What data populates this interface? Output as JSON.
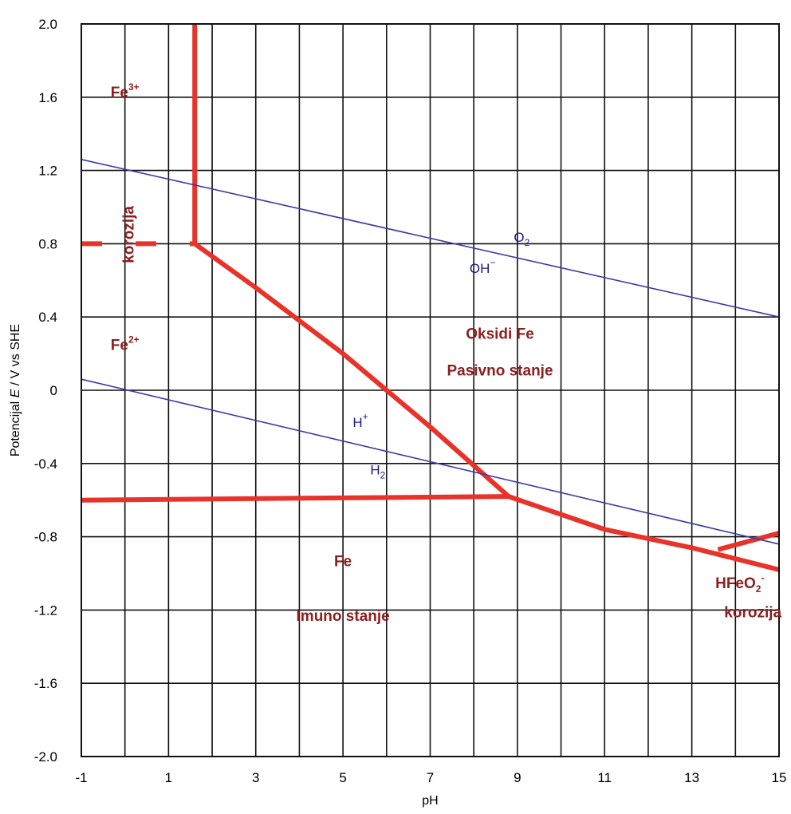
{
  "chart_data": {
    "type": "line",
    "xlabel": "pH",
    "ylabel_parts": [
      "Potencijal ",
      "E",
      " / V vs SHE"
    ],
    "xlim": [
      -1,
      15
    ],
    "ylim": [
      -2.0,
      2.0
    ],
    "x_grid_step": 1,
    "y_grid_step": 0.4,
    "x_ticks": [
      {
        "value": -1,
        "label": "-1"
      },
      {
        "value": 1,
        "label": "1"
      },
      {
        "value": 3,
        "label": "3"
      },
      {
        "value": 5,
        "label": "5"
      },
      {
        "value": 7,
        "label": "7"
      },
      {
        "value": 9,
        "label": "9"
      },
      {
        "value": 11,
        "label": "11"
      },
      {
        "value": 13,
        "label": "13"
      },
      {
        "value": 15,
        "label": "15"
      }
    ],
    "y_ticks": [
      {
        "value": 2.0,
        "label": "2.0"
      },
      {
        "value": 1.6,
        "label": "1.6"
      },
      {
        "value": 1.2,
        "label": "1.2"
      },
      {
        "value": 0.8,
        "label": "0.8"
      },
      {
        "value": 0.4,
        "label": "0.4"
      },
      {
        "value": 0.0,
        "label": "0"
      },
      {
        "value": -0.4,
        "label": "-0.4"
      },
      {
        "value": -0.8,
        "label": "-0.8"
      },
      {
        "value": -1.2,
        "label": "-1.2"
      },
      {
        "value": -1.6,
        "label": "-1.6"
      },
      {
        "value": -2.0,
        "label": "-2.0"
      }
    ],
    "grid": true,
    "series": [
      {
        "color": "#e8332a",
        "style": "solid",
        "points": [
          [
            1.6,
            2.0
          ],
          [
            1.6,
            0.8
          ]
        ]
      },
      {
        "color": "#e8332a",
        "style": "solid",
        "points": [
          [
            1.6,
            0.8
          ],
          [
            3.0,
            0.56
          ],
          [
            5.0,
            0.2
          ],
          [
            7.0,
            -0.2
          ],
          [
            8.8,
            -0.58
          ]
        ]
      },
      {
        "color": "#e8332a",
        "style": "solid",
        "points": [
          [
            -1.0,
            -0.6
          ],
          [
            8.8,
            -0.58
          ]
        ]
      },
      {
        "color": "#e8332a",
        "style": "solid",
        "points": [
          [
            8.8,
            -0.58
          ],
          [
            11.0,
            -0.76
          ],
          [
            13.0,
            -0.86
          ],
          [
            15.0,
            -0.98
          ]
        ]
      },
      {
        "color": "#e8332a",
        "style": "solid",
        "points": [
          [
            13.6,
            -0.87
          ],
          [
            15.0,
            -0.78
          ]
        ]
      },
      {
        "color": "#e8332a",
        "style": "dashed",
        "points": [
          [
            -1.0,
            0.8
          ],
          [
            1.6,
            0.8
          ]
        ]
      },
      {
        "color": "#3a3aa8",
        "style": "solid",
        "points": [
          [
            -1.0,
            1.26
          ],
          [
            15.0,
            0.4
          ]
        ]
      },
      {
        "color": "#3a3aa8",
        "style": "solid",
        "points": [
          [
            -1.0,
            0.06
          ],
          [
            15.0,
            -0.84
          ]
        ]
      }
    ],
    "annotations": [
      {
        "text": "Fe",
        "sup": "3+",
        "x": 0.0,
        "y": 1.6,
        "kind": "red"
      },
      {
        "text": "Fe",
        "sup": "2+",
        "x": 0.0,
        "y": 0.22,
        "kind": "red"
      },
      {
        "text": "korozija",
        "x": 0.2,
        "y": 0.85,
        "kind": "red",
        "rotate": -90
      },
      {
        "text": "O",
        "sub": "2",
        "x": 9.1,
        "y": 0.81,
        "kind": "blue"
      },
      {
        "text": "OH",
        "sup": "−",
        "x": 8.2,
        "y": 0.64,
        "kind": "blue"
      },
      {
        "text": "Oksidi Fe",
        "x": 8.6,
        "y": 0.28,
        "kind": "red"
      },
      {
        "text": "Pasivno stanje",
        "x": 8.6,
        "y": 0.08,
        "kind": "red"
      },
      {
        "text": "H",
        "sup": "+",
        "x": 5.4,
        "y": -0.2,
        "kind": "blue"
      },
      {
        "text": "H",
        "sub": "2",
        "x": 5.8,
        "y": -0.46,
        "kind": "blue"
      },
      {
        "text": "Fe",
        "x": 5.0,
        "y": -0.96,
        "kind": "red"
      },
      {
        "text": "Imuno stanje",
        "x": 5.0,
        "y": -1.26,
        "kind": "red"
      },
      {
        "text": "HFeO",
        "sub": "2",
        "sup": "-",
        "x": 14.1,
        "y": -1.08,
        "kind": "red"
      },
      {
        "text": "korozija",
        "x": 14.4,
        "y": -1.24,
        "kind": "red"
      }
    ]
  }
}
